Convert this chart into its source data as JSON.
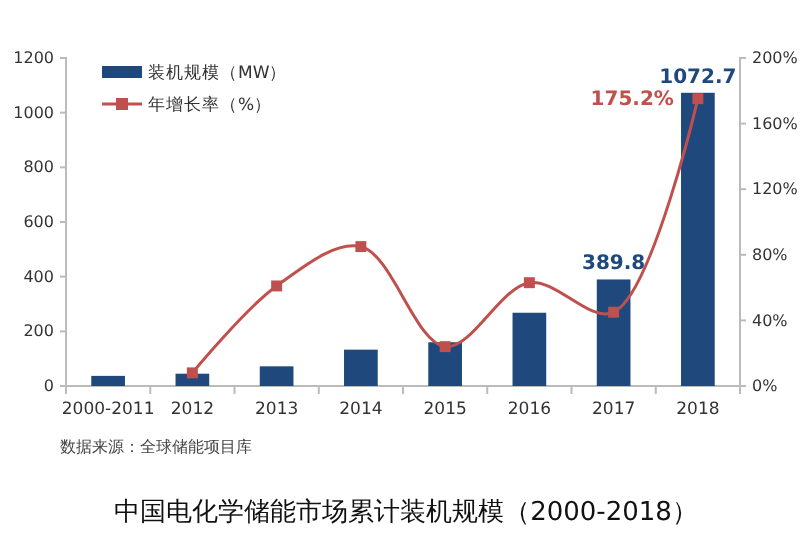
{
  "chart_data": {
    "type": "bar",
    "title": "中国电化学储能市场累计装机规模（2000-2018）",
    "categories": [
      "2000-2011",
      "2012",
      "2013",
      "2014",
      "2015",
      "2016",
      "2017",
      "2018"
    ],
    "series": [
      {
        "name": "装机规模（MW）",
        "color": "#1f497d",
        "values": [
          37,
          45,
          72,
          133,
          160,
          268,
          389.8,
          1072.7
        ],
        "value_labels": [
          null,
          null,
          null,
          null,
          null,
          null,
          "389.8",
          "1072.7"
        ]
      },
      {
        "name": "年增长率（%）",
        "type": "line",
        "axis": "y2",
        "color": "#c0504d",
        "marker": "square",
        "values": [
          null,
          8,
          61,
          85,
          24,
          63,
          45,
          175.2
        ],
        "value_labels": [
          null,
          null,
          null,
          null,
          null,
          null,
          null,
          "175.2%"
        ]
      }
    ],
    "ylim": [
      0,
      1200
    ],
    "yticks": [
      0,
      200,
      400,
      600,
      800,
      1000,
      1200
    ],
    "y2lim": [
      0,
      200
    ],
    "y2ticks": [
      {
        "value": 0,
        "label": "0%"
      },
      {
        "value": 40,
        "label": "40%"
      },
      {
        "value": 80,
        "label": "80%"
      },
      {
        "value": 120,
        "label": "120%"
      },
      {
        "value": 160,
        "label": "160%"
      },
      {
        "value": 200,
        "label": "200%"
      }
    ],
    "legend": "top left",
    "grid": false,
    "annotations": [
      "数据来源：全球储能项目库"
    ]
  }
}
